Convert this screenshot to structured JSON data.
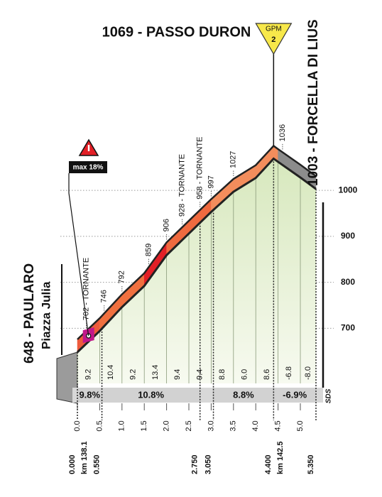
{
  "chart_data": {
    "type": "area",
    "summit": {
      "label": "1069 - PASSO DURON",
      "x": 4.4,
      "gpm_label": "GPM",
      "gpm_category": "2",
      "gpm_color": "#f7e84a"
    },
    "finish": {
      "label": "1003 - FORCELLA DI LIUS"
    },
    "start": {
      "label": "648 - PAULARO",
      "sublabel": "Piazza Julia"
    },
    "max_gradient": {
      "label": "max 18%",
      "x": 0.25
    },
    "x": [
      0,
      0.5,
      1,
      1.5,
      2,
      2.5,
      3,
      3.5,
      4,
      4.4,
      4.5,
      5,
      5.35
    ],
    "values": [
      648,
      694,
      746,
      792,
      859,
      906,
      953,
      997,
      1027,
      1069,
      1062,
      1028,
      1003
    ],
    "xlim": [
      0,
      5.35
    ],
    "xticks": [
      {
        "value": 0,
        "label": "0.0"
      },
      0.5,
      {
        "value": 1,
        "label": "1.0"
      },
      1.5,
      {
        "value": 2,
        "label": "2.0"
      },
      2.5,
      {
        "value": 3,
        "label": "3.0"
      },
      3.5,
      {
        "value": 4,
        "label": "4.0"
      },
      4.5,
      {
        "value": 5,
        "label": "5.0"
      }
    ],
    "ylim": [
      580,
      1340
    ],
    "yticks": [
      700,
      800,
      900,
      1000
    ],
    "grid": true,
    "fill_color": "#d7e8bd",
    "segments": {
      "values": [
        9.2,
        10.4,
        9.2,
        13.4,
        9.4,
        9.4,
        8.8,
        6.0,
        8.6,
        -6.8,
        -8.0
      ],
      "value_labels": [
        "9.2",
        "10.4",
        "9.2",
        "13.4",
        "9.4",
        "9.4",
        "8.8",
        "6.0",
        "8.6",
        "-6.8",
        "-8.0"
      ],
      "colors": [
        "#ee5b3c",
        "#f0703f",
        "#f0703f",
        "#e21f26",
        "#ef6a3f",
        "#ef6a3f",
        "#f38d5c",
        "#f38d5c",
        "#f38d5c",
        "#8c8c8c",
        "#8c8c8c"
      ]
    },
    "key_points": [
      {
        "value": 0,
        "label": "0.000"
      },
      {
        "value": 0.55,
        "label": "0.550"
      },
      {
        "value": 2.75,
        "label": "2.750"
      },
      {
        "value": 3.05,
        "label": "3.050"
      },
      {
        "value": 4.4,
        "label": "4.400"
      },
      {
        "value": 5.35,
        "label": "5.350"
      }
    ],
    "km_labels": [
      {
        "value": 0,
        "label": "km 138.1"
      },
      {
        "value": 4.4,
        "label": "km 142.5"
      }
    ],
    "averages": [
      {
        "from": 0,
        "to": 0.55,
        "value": 9.8,
        "label": "9.8%"
      },
      {
        "from": 0.55,
        "to": 2.75,
        "value": 10.8,
        "label": "10.8%"
      },
      {
        "from": 3.05,
        "to": 4.4,
        "value": 8.8,
        "label": "8.8%"
      },
      {
        "from": 4.4,
        "to": 5.35,
        "value": -6.9,
        "label": "-6.9%"
      }
    ],
    "annotations": [
      {
        "x": 0.2,
        "label": "702 - TORNANTE"
      },
      {
        "x": 0.6,
        "label": "746"
      },
      {
        "x": 1.0,
        "label": "792"
      },
      {
        "x": 1.6,
        "label": "859"
      },
      {
        "x": 2.0,
        "label": "906"
      },
      {
        "x": 2.35,
        "label": "928 - TORNANTE"
      },
      {
        "x": 2.75,
        "label": "958 - TORNANTE"
      },
      {
        "x": 3.0,
        "label": "997"
      },
      {
        "x": 3.5,
        "label": "1027"
      },
      {
        "x": 4.6,
        "label": "1036"
      }
    ],
    "logo": "SDS"
  }
}
